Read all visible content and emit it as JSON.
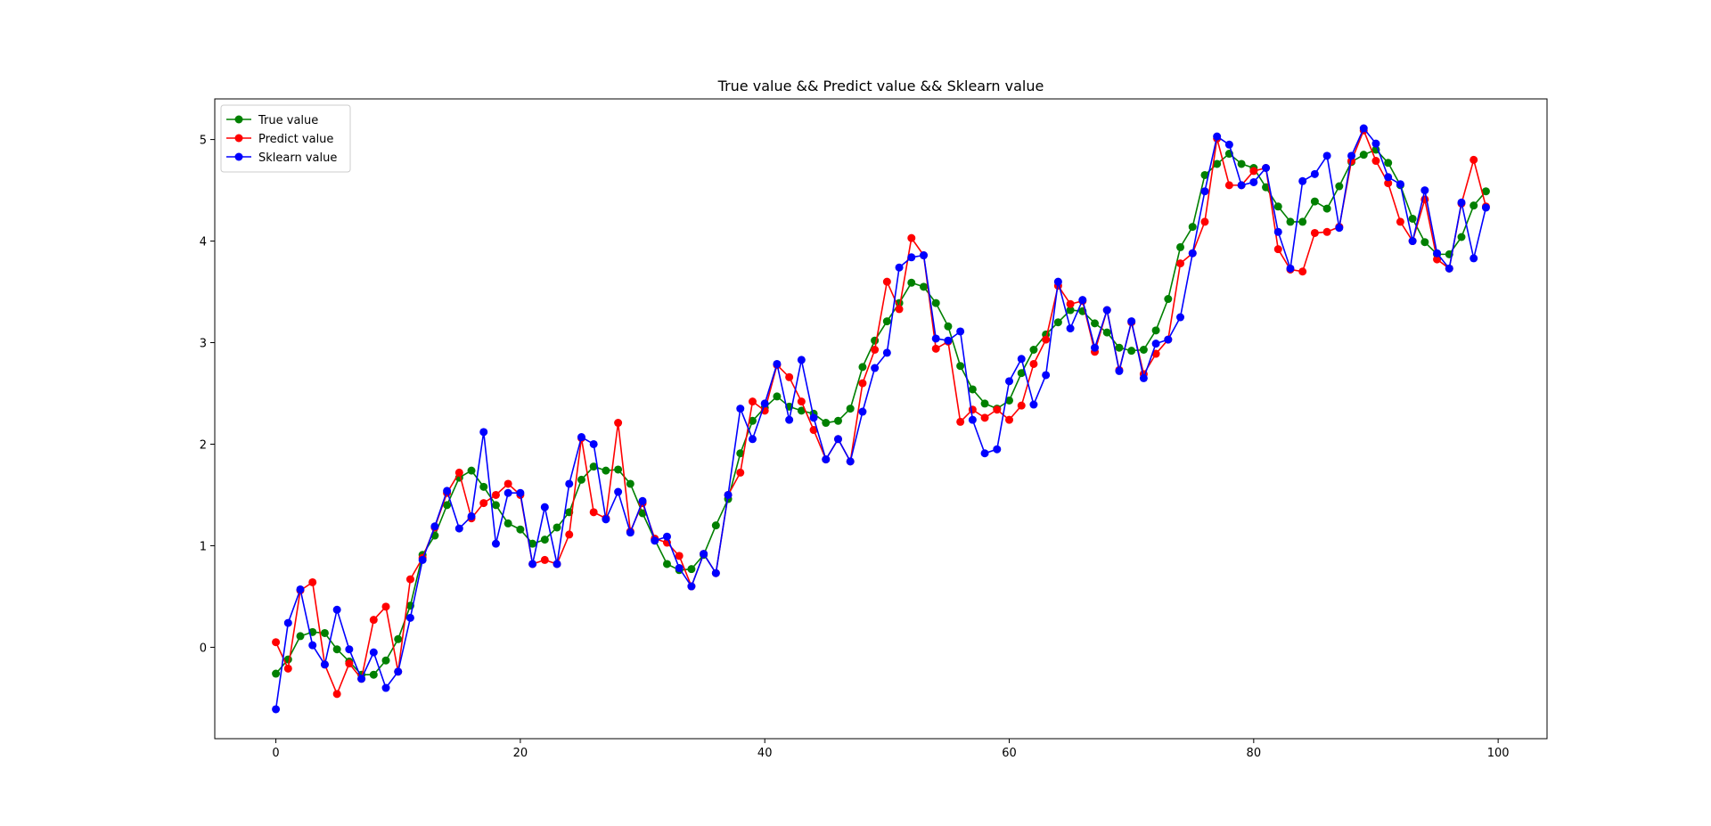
{
  "chart_data": {
    "type": "line",
    "title": "True value && Predict value && Sklearn value",
    "xlabel": "",
    "ylabel": "",
    "xlim": [
      -5,
      104
    ],
    "ylim": [
      -0.9,
      5.4
    ],
    "x_ticks": [
      0,
      20,
      40,
      60,
      80,
      100
    ],
    "y_ticks": [
      0,
      1,
      2,
      3,
      4,
      5
    ],
    "grid": false,
    "legend_position": "upper-left",
    "marker": "circle",
    "x": [
      0,
      1,
      2,
      3,
      4,
      5,
      6,
      7,
      8,
      9,
      10,
      11,
      12,
      13,
      14,
      15,
      16,
      17,
      18,
      19,
      20,
      21,
      22,
      23,
      24,
      25,
      26,
      27,
      28,
      29,
      30,
      31,
      32,
      33,
      34,
      35,
      36,
      37,
      38,
      39,
      40,
      41,
      42,
      43,
      44,
      45,
      46,
      47,
      48,
      49,
      50,
      51,
      52,
      53,
      54,
      55,
      56,
      57,
      58,
      59,
      60,
      61,
      62,
      63,
      64,
      65,
      66,
      67,
      68,
      69,
      70,
      71,
      72,
      73,
      74,
      75,
      76,
      77,
      78,
      79,
      80,
      81,
      82,
      83,
      84,
      85,
      86,
      87,
      88,
      89,
      90,
      91,
      92,
      93,
      94,
      95,
      96,
      97,
      98,
      99
    ],
    "series": [
      {
        "name": "True value",
        "color": "#008000",
        "values": [
          -0.26,
          -0.12,
          0.11,
          0.15,
          0.14,
          -0.02,
          -0.14,
          -0.27,
          -0.27,
          -0.13,
          0.08,
          0.41,
          0.91,
          1.1,
          1.4,
          1.67,
          1.74,
          1.58,
          1.4,
          1.22,
          1.16,
          1.02,
          1.06,
          1.18,
          1.33,
          1.65,
          1.78,
          1.74,
          1.75,
          1.61,
          1.32,
          1.06,
          0.82,
          0.76,
          0.77,
          0.91,
          1.2,
          1.46,
          1.91,
          2.23,
          2.36,
          2.47,
          2.37,
          2.33,
          2.3,
          2.21,
          2.23,
          2.35,
          2.76,
          3.02,
          3.21,
          3.39,
          3.59,
          3.55,
          3.39,
          3.16,
          2.77,
          2.54,
          2.4,
          2.35,
          2.43,
          2.7,
          2.93,
          3.08,
          3.2,
          3.32,
          3.31,
          3.19,
          3.1,
          2.95,
          2.92,
          2.93,
          3.12,
          3.43,
          3.94,
          4.14,
          4.65,
          4.76,
          4.86,
          4.76,
          4.72,
          4.53,
          4.34,
          4.19,
          4.19,
          4.39,
          4.32,
          4.54,
          4.78,
          4.85,
          4.9,
          4.77,
          4.55,
          4.22,
          3.99,
          3.87,
          3.87,
          4.04,
          4.35,
          4.49
        ]
      },
      {
        "name": "Predict value",
        "color": "#ff0000",
        "values": [
          0.05,
          -0.21,
          0.56,
          0.64,
          -0.17,
          -0.46,
          -0.16,
          -0.31,
          0.27,
          0.4,
          -0.24,
          0.67,
          0.88,
          1.18,
          1.52,
          1.72,
          1.27,
          1.42,
          1.5,
          1.61,
          1.5,
          0.82,
          0.86,
          0.82,
          1.11,
          2.06,
          1.33,
          1.27,
          2.21,
          1.14,
          1.42,
          1.07,
          1.03,
          0.9,
          0.6,
          0.92,
          0.73,
          1.5,
          1.72,
          2.42,
          2.33,
          2.78,
          2.66,
          2.42,
          2.14,
          1.85,
          2.05,
          1.83,
          2.6,
          2.93,
          3.6,
          3.33,
          4.03,
          3.86,
          2.94,
          3.01,
          2.22,
          2.34,
          2.26,
          2.34,
          2.24,
          2.38,
          2.79,
          3.03,
          3.56,
          3.38,
          3.41,
          2.91,
          3.32,
          2.73,
          3.2,
          2.69,
          2.89,
          3.03,
          3.78,
          3.88,
          4.19,
          5.01,
          4.55,
          4.55,
          4.69,
          4.72,
          3.92,
          3.72,
          3.7,
          4.08,
          4.09,
          4.14,
          4.79,
          5.09,
          4.79,
          4.57,
          4.19,
          4.0,
          4.41,
          3.82,
          3.73,
          4.37,
          4.8,
          4.34
        ]
      },
      {
        "name": "Sklearn value",
        "color": "#0000ff",
        "values": [
          -0.61,
          0.24,
          0.57,
          0.02,
          -0.17,
          0.37,
          -0.02,
          -0.31,
          -0.05,
          -0.4,
          -0.24,
          0.29,
          0.86,
          1.19,
          1.54,
          1.17,
          1.29,
          2.12,
          1.02,
          1.52,
          1.52,
          0.82,
          1.38,
          0.82,
          1.61,
          2.07,
          2.0,
          1.26,
          1.53,
          1.13,
          1.44,
          1.05,
          1.09,
          0.78,
          0.6,
          0.92,
          0.73,
          1.5,
          2.35,
          2.05,
          2.4,
          2.79,
          2.24,
          2.83,
          2.26,
          1.85,
          2.05,
          1.83,
          2.32,
          2.75,
          2.9,
          3.74,
          3.84,
          3.86,
          3.04,
          3.02,
          3.11,
          2.24,
          1.91,
          1.95,
          2.62,
          2.84,
          2.39,
          2.68,
          3.6,
          3.14,
          3.42,
          2.95,
          3.32,
          2.72,
          3.21,
          2.65,
          2.99,
          3.03,
          3.25,
          3.88,
          4.49,
          5.03,
          4.95,
          4.55,
          4.58,
          4.72,
          4.09,
          3.73,
          4.59,
          4.66,
          4.84,
          4.13,
          4.84,
          5.11,
          4.96,
          4.63,
          4.56,
          4.0,
          4.5,
          3.88,
          3.73,
          4.38,
          3.83,
          4.33
        ]
      }
    ]
  }
}
